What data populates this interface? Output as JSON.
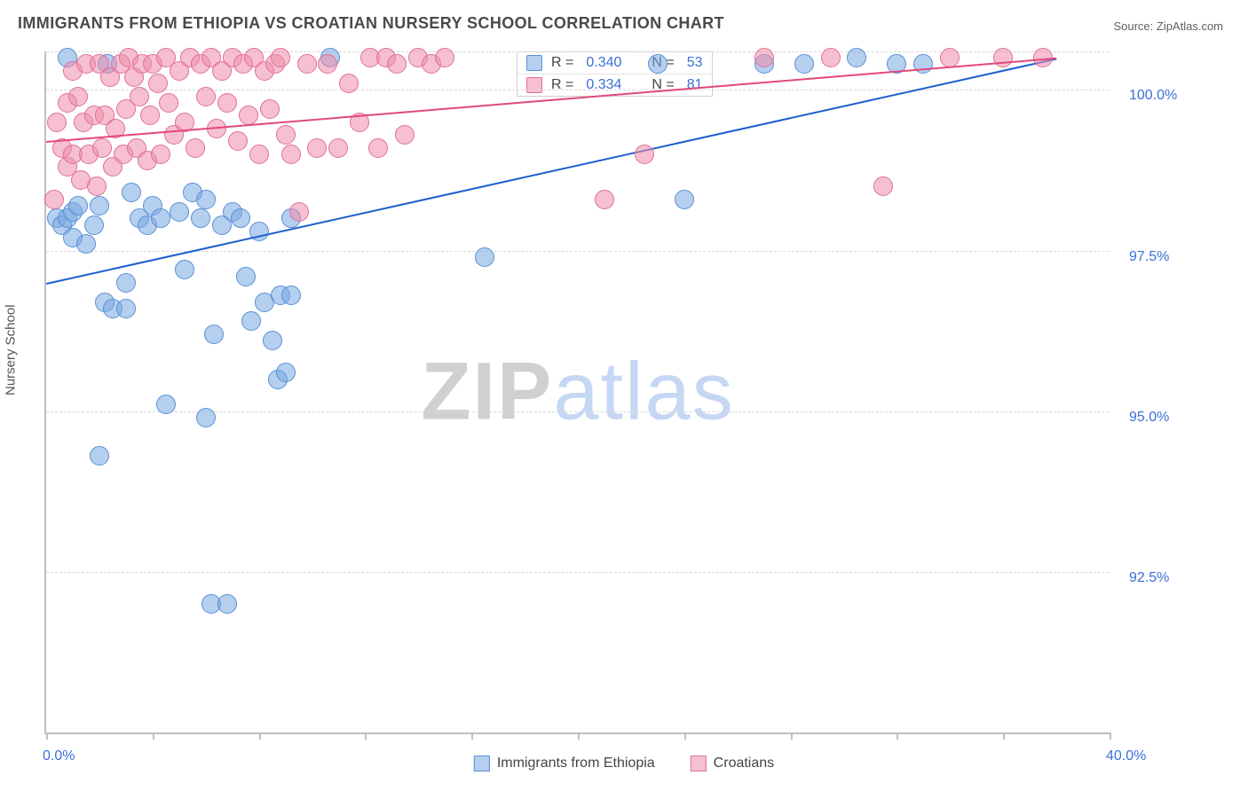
{
  "title": "IMMIGRANTS FROM ETHIOPIA VS CROATIAN NURSERY SCHOOL CORRELATION CHART",
  "source_label": "Source: ZipAtlas.com",
  "y_axis_label": "Nursery School",
  "watermark": {
    "left": "ZIP",
    "right": "atlas"
  },
  "chart": {
    "type": "scatter",
    "background_color": "#ffffff",
    "grid_color": "#d9d9d9",
    "axis_color": "#bfbfbf",
    "tick_label_color": "#3a6fd8",
    "tick_fontsize": 16,
    "title_fontsize": 18,
    "xlim": [
      0.0,
      40.0
    ],
    "ylim": [
      90.0,
      100.6
    ],
    "x_ticks": [
      0.0,
      4.0,
      8.0,
      12.0,
      16.0,
      20.0,
      24.0,
      28.0,
      32.0,
      36.0,
      40.0
    ],
    "x_tick_labels": [
      "0.0%",
      "",
      "",
      "",
      "",
      "",
      "",
      "",
      "",
      "",
      "40.0%"
    ],
    "y_gridlines": [
      92.5,
      95.0,
      97.5,
      100.0,
      100.6
    ],
    "y_tick_labels": [
      "92.5%",
      "95.0%",
      "97.5%",
      "100.0%",
      ""
    ],
    "marker_radius": 11,
    "marker_border_width": 1.5,
    "series": [
      {
        "id": "ethiopia",
        "label": "Immigrants from Ethiopia",
        "fill_color": "rgba(121,168,225,0.55)",
        "stroke_color": "#5a8fd6",
        "trend_color": "#1c5fd0",
        "r_value": "0.340",
        "n_value": "53",
        "trend": {
          "x1": 0.0,
          "y1": 97.0,
          "x2": 38.0,
          "y2": 100.5
        },
        "points": [
          [
            0.4,
            98.0
          ],
          [
            0.6,
            97.9
          ],
          [
            0.8,
            98.0
          ],
          [
            1.0,
            98.1
          ],
          [
            1.0,
            97.7
          ],
          [
            1.2,
            98.2
          ],
          [
            1.5,
            97.6
          ],
          [
            1.8,
            97.9
          ],
          [
            2.0,
            98.2
          ],
          [
            0.8,
            100.5
          ],
          [
            2.3,
            100.4
          ],
          [
            2.2,
            96.7
          ],
          [
            2.5,
            96.6
          ],
          [
            3.0,
            97.0
          ],
          [
            3.2,
            98.4
          ],
          [
            3.5,
            98.0
          ],
          [
            3.8,
            97.9
          ],
          [
            4.0,
            98.2
          ],
          [
            4.3,
            98.0
          ],
          [
            4.5,
            95.1
          ],
          [
            3.0,
            96.6
          ],
          [
            2.0,
            94.3
          ],
          [
            5.0,
            98.1
          ],
          [
            5.2,
            97.2
          ],
          [
            5.5,
            98.4
          ],
          [
            5.8,
            98.0
          ],
          [
            6.0,
            98.3
          ],
          [
            6.0,
            94.9
          ],
          [
            6.2,
            92.0
          ],
          [
            6.8,
            92.0
          ],
          [
            6.3,
            96.2
          ],
          [
            6.6,
            97.9
          ],
          [
            7.0,
            98.1
          ],
          [
            7.3,
            98.0
          ],
          [
            7.5,
            97.1
          ],
          [
            7.7,
            96.4
          ],
          [
            8.0,
            97.8
          ],
          [
            8.2,
            96.7
          ],
          [
            8.5,
            96.1
          ],
          [
            8.8,
            96.8
          ],
          [
            8.7,
            95.5
          ],
          [
            9.0,
            95.6
          ],
          [
            9.2,
            98.0
          ],
          [
            9.2,
            96.8
          ],
          [
            10.7,
            100.5
          ],
          [
            16.5,
            97.4
          ],
          [
            23.0,
            100.4
          ],
          [
            24.0,
            98.3
          ],
          [
            27.0,
            100.4
          ],
          [
            28.5,
            100.4
          ],
          [
            30.5,
            100.5
          ],
          [
            32.0,
            100.4
          ],
          [
            33.0,
            100.4
          ]
        ]
      },
      {
        "id": "croatians",
        "label": "Croatians",
        "fill_color": "rgba(238,140,170,0.55)",
        "stroke_color": "#e06f97",
        "trend_color": "#e2477d",
        "r_value": "0.334",
        "n_value": "81",
        "trend": {
          "x1": 0.0,
          "y1": 99.2,
          "x2": 38.0,
          "y2": 100.5
        },
        "points": [
          [
            0.3,
            98.3
          ],
          [
            0.4,
            99.5
          ],
          [
            0.6,
            99.1
          ],
          [
            0.8,
            98.8
          ],
          [
            0.8,
            99.8
          ],
          [
            1.0,
            99.0
          ],
          [
            1.0,
            100.3
          ],
          [
            1.2,
            99.9
          ],
          [
            1.3,
            98.6
          ],
          [
            1.4,
            99.5
          ],
          [
            1.5,
            100.4
          ],
          [
            1.6,
            99.0
          ],
          [
            1.8,
            99.6
          ],
          [
            1.9,
            98.5
          ],
          [
            2.0,
            100.4
          ],
          [
            2.1,
            99.1
          ],
          [
            2.2,
            99.6
          ],
          [
            2.4,
            100.2
          ],
          [
            2.5,
            98.8
          ],
          [
            2.6,
            99.4
          ],
          [
            2.8,
            100.4
          ],
          [
            2.9,
            99.0
          ],
          [
            3.0,
            99.7
          ],
          [
            3.1,
            100.5
          ],
          [
            3.3,
            100.2
          ],
          [
            3.4,
            99.1
          ],
          [
            3.5,
            99.9
          ],
          [
            3.6,
            100.4
          ],
          [
            3.8,
            98.9
          ],
          [
            3.9,
            99.6
          ],
          [
            4.0,
            100.4
          ],
          [
            4.2,
            100.1
          ],
          [
            4.3,
            99.0
          ],
          [
            4.5,
            100.5
          ],
          [
            4.6,
            99.8
          ],
          [
            4.8,
            99.3
          ],
          [
            5.0,
            100.3
          ],
          [
            5.2,
            99.5
          ],
          [
            5.4,
            100.5
          ],
          [
            5.6,
            99.1
          ],
          [
            5.8,
            100.4
          ],
          [
            6.0,
            99.9
          ],
          [
            6.2,
            100.5
          ],
          [
            6.4,
            99.4
          ],
          [
            6.6,
            100.3
          ],
          [
            6.8,
            99.8
          ],
          [
            7.0,
            100.5
          ],
          [
            7.2,
            99.2
          ],
          [
            7.4,
            100.4
          ],
          [
            7.6,
            99.6
          ],
          [
            7.8,
            100.5
          ],
          [
            8.0,
            99.0
          ],
          [
            8.2,
            100.3
          ],
          [
            8.4,
            99.7
          ],
          [
            8.6,
            100.4
          ],
          [
            8.8,
            100.5
          ],
          [
            9.0,
            99.3
          ],
          [
            9.2,
            99.0
          ],
          [
            9.5,
            98.1
          ],
          [
            9.8,
            100.4
          ],
          [
            10.2,
            99.1
          ],
          [
            10.6,
            100.4
          ],
          [
            11.0,
            99.1
          ],
          [
            11.4,
            100.1
          ],
          [
            11.8,
            99.5
          ],
          [
            12.2,
            100.5
          ],
          [
            12.5,
            99.1
          ],
          [
            12.8,
            100.5
          ],
          [
            13.2,
            100.4
          ],
          [
            13.5,
            99.3
          ],
          [
            14.0,
            100.5
          ],
          [
            14.5,
            100.4
          ],
          [
            15.0,
            100.5
          ],
          [
            21.0,
            98.3
          ],
          [
            22.5,
            99.0
          ],
          [
            27.0,
            100.5
          ],
          [
            29.5,
            100.5
          ],
          [
            31.5,
            98.5
          ],
          [
            34.0,
            100.5
          ],
          [
            36.0,
            100.5
          ],
          [
            37.5,
            100.5
          ]
        ]
      }
    ],
    "bottom_legend": [
      {
        "label": "Immigrants from Ethiopia",
        "fill": "rgba(121,168,225,0.55)",
        "stroke": "#5a8fd6"
      },
      {
        "label": "Croatians",
        "fill": "rgba(238,140,170,0.55)",
        "stroke": "#e06f97"
      }
    ]
  },
  "r_legend_static": {
    "r_prefix": "R =",
    "n_prefix": "N ="
  }
}
